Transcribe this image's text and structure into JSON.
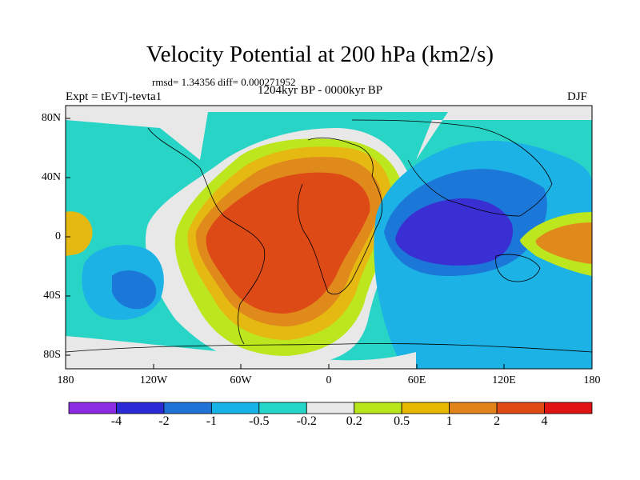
{
  "title": "Velocity Potential at 200 hPa (km2/s)",
  "stats_line": "rmsd= 1.34356 diff= 0.000271952",
  "period": "1204kyr BP - 0000kyr BP",
  "experiment": "Expt = tEvTj-tevta1",
  "season": "DJF",
  "y_axis_labels": [
    "80N",
    "40N",
    "0",
    "40S",
    "80S"
  ],
  "x_axis_labels": [
    "180",
    "120W",
    "60W",
    "0",
    "60E",
    "120E",
    "180"
  ],
  "colorbar": {
    "labels": [
      "-4",
      "-2",
      "-1",
      "-0.5",
      "-0.2",
      "0.2",
      "0.5",
      "1",
      "2",
      "4"
    ],
    "colors": [
      "#8b2be2",
      "#2b2bd6",
      "#1f72d6",
      "#16b4e6",
      "#24d6c8",
      "#e8e8e8",
      "#b8e61a",
      "#e6b800",
      "#e0841a",
      "#e04a14",
      "#e01212"
    ]
  },
  "palette": {
    "neg4": "#3a2fd2",
    "neg2": "#1c78d8",
    "neg1": "#1cb2e6",
    "neg05": "#28d4c6",
    "neutral": "#e8e8e8",
    "pos02": "#bce61e",
    "pos05": "#e6b812",
    "pos1": "#e08a1c",
    "pos2": "#dd4a16"
  }
}
